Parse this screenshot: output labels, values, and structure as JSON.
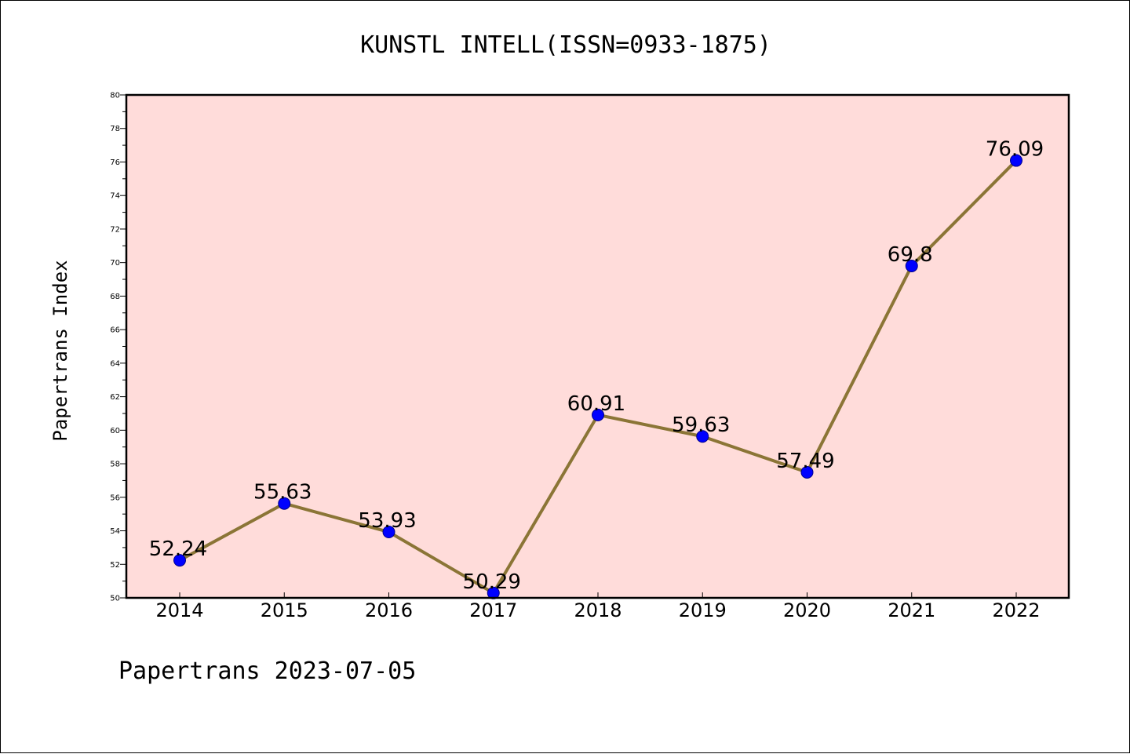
{
  "chart_data": {
    "type": "line",
    "title": "KUNSTL INTELL(ISSN=0933-1875)",
    "ylabel": "Papertrans Index",
    "xlabel": "",
    "footer": "Papertrans 2023-07-05",
    "x": [
      "2014",
      "2015",
      "2016",
      "2017",
      "2018",
      "2019",
      "2020",
      "2021",
      "2022"
    ],
    "values": [
      52.24,
      55.63,
      53.93,
      50.29,
      60.91,
      59.63,
      57.49,
      69.8,
      76.09
    ],
    "data_labels": [
      "52.24",
      "55.63",
      "53.93",
      "50.29",
      "60.91",
      "59.63",
      "57.49",
      "69.8",
      "76.09"
    ],
    "ylim": [
      50,
      80
    ],
    "yticks": [
      50,
      52,
      54,
      56,
      58,
      60,
      62,
      64,
      66,
      68,
      70,
      72,
      74,
      76,
      78,
      80
    ],
    "grid": false,
    "legend": "none",
    "colors": {
      "plot_background": "#FFDCDA",
      "line": "#8B7536",
      "marker": "#0000FF",
      "marker_edge": "#00008B",
      "axes": "#000000"
    }
  }
}
